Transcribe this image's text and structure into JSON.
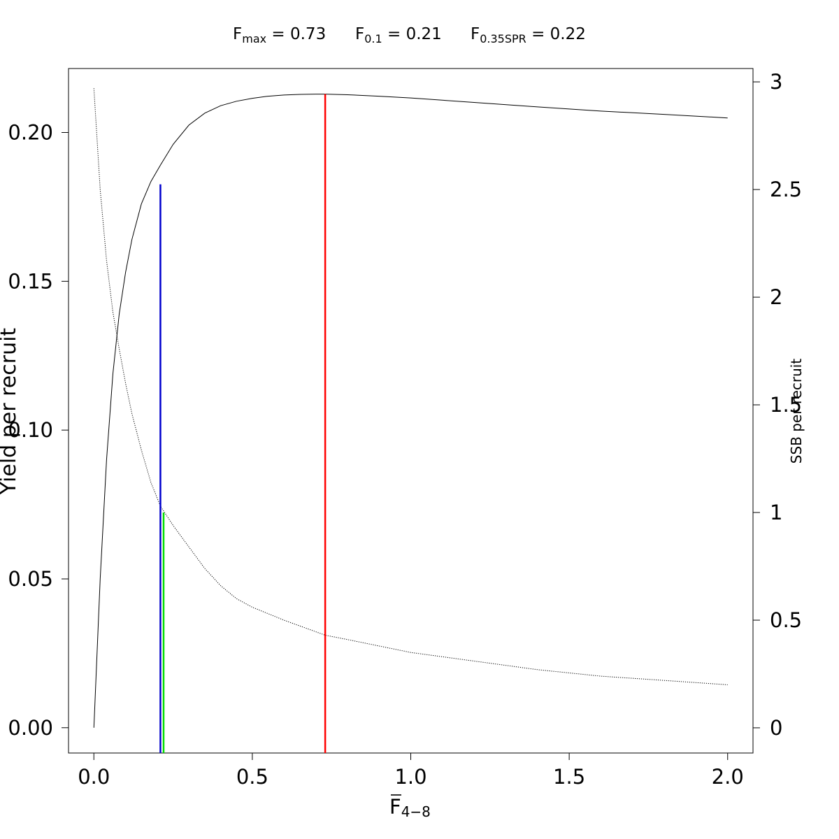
{
  "chart_data": {
    "type": "line",
    "header": [
      {
        "base": "F",
        "sub": "max",
        "rest": " = 0.73"
      },
      {
        "base": "F",
        "sub": "0.1",
        "rest": " = 0.21"
      },
      {
        "base": "F",
        "sub": "0.35SPR",
        "rest": " = 0.22"
      }
    ],
    "xlabel": {
      "base": "F",
      "sub": "4−8",
      "bar": true
    },
    "ylabel_left": "Yield per recruit",
    "ylabel_right": "SSB per recruit",
    "xlim": [
      -0.08,
      2.08
    ],
    "ylim_left": [
      -0.0085,
      0.2215
    ],
    "ylim_right": [
      -0.117,
      3.062
    ],
    "x_ticks": [
      0.0,
      0.5,
      1.0,
      1.5,
      2.0
    ],
    "x_tick_labels": [
      "0.0",
      "0.5",
      "1.0",
      "1.5",
      "2.0"
    ],
    "y_left_ticks": [
      0.0,
      0.05,
      0.1,
      0.15,
      0.2
    ],
    "y_left_tick_labels": [
      "0.00",
      "0.05",
      "0.10",
      "0.15",
      "0.20"
    ],
    "y_right_ticks": [
      0,
      0.5,
      1,
      1.5,
      2,
      2.5,
      3
    ],
    "y_right_tick_labels": [
      "0",
      "0.5",
      "1",
      "1.5",
      "2",
      "2.5",
      "3"
    ],
    "series": [
      {
        "axis": "left",
        "style": "solid",
        "color": "#000000",
        "x": [
          0,
          0.02,
          0.04,
          0.06,
          0.08,
          0.1,
          0.12,
          0.15,
          0.18,
          0.21,
          0.25,
          0.3,
          0.35,
          0.4,
          0.45,
          0.5,
          0.55,
          0.6,
          0.65,
          0.7,
          0.73,
          0.8,
          0.9,
          1.0,
          1.2,
          1.4,
          1.6,
          1.8,
          2.0
        ],
        "y": [
          0.0,
          0.05,
          0.09,
          0.119,
          0.139,
          0.153,
          0.164,
          0.176,
          0.1835,
          0.189,
          0.196,
          0.2025,
          0.2065,
          0.209,
          0.2105,
          0.2115,
          0.2122,
          0.2126,
          0.2128,
          0.2129,
          0.2129,
          0.2127,
          0.2122,
          0.2116,
          0.2101,
          0.2086,
          0.2072,
          0.2061,
          0.2049
        ]
      },
      {
        "axis": "right",
        "style": "dotted",
        "color": "#000000",
        "x": [
          0,
          0.02,
          0.04,
          0.06,
          0.08,
          0.1,
          0.12,
          0.15,
          0.18,
          0.21,
          0.25,
          0.3,
          0.35,
          0.4,
          0.45,
          0.5,
          0.6,
          0.73,
          0.8,
          1.0,
          1.2,
          1.4,
          1.6,
          1.8,
          2.0
        ],
        "y": [
          2.97,
          2.5,
          2.17,
          1.93,
          1.76,
          1.6,
          1.46,
          1.29,
          1.14,
          1.03,
          0.94,
          0.84,
          0.74,
          0.66,
          0.6,
          0.56,
          0.5,
          0.43,
          0.41,
          0.35,
          0.31,
          0.27,
          0.24,
          0.22,
          0.2
        ]
      }
    ],
    "reference_lines": [
      {
        "x": 0.73,
        "axis": "left",
        "top": 0.2129,
        "color": "#ff0000"
      },
      {
        "x": 0.21,
        "axis": "left",
        "top": 0.1826,
        "color": "#0000cd"
      },
      {
        "x": 0.22,
        "axis": "right",
        "top": 1.0,
        "color": "#00dd00"
      }
    ],
    "grid": false,
    "legend": "none"
  }
}
